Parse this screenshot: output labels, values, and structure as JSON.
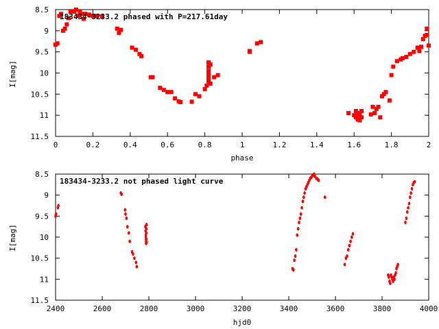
{
  "chart_data": [
    {
      "type": "scatter",
      "title": "183434-3233.2 phased with P=217.61day",
      "xlabel": "phase",
      "ylabel": "I[mag]",
      "xlim": [
        0,
        2
      ],
      "ylim": [
        11.5,
        8.5
      ],
      "y_inverted": true,
      "grid": false,
      "x_ticks": [
        "0",
        "0.2",
        "0.4",
        "0.6",
        "0.8",
        "1",
        "1.2",
        "1.4",
        "1.6",
        "1.8",
        "2"
      ],
      "y_ticks": [
        "8.5",
        "9",
        "9.5",
        "10",
        "10.5",
        "11",
        "11.5"
      ],
      "marker_color": "#ff0000",
      "series": [
        {
          "x": [
            0.0,
            0.01,
            0.02,
            0.03,
            0.04,
            0.05,
            0.06,
            0.07,
            0.08,
            0.09,
            0.1,
            0.11,
            0.12,
            0.13,
            0.14,
            0.15,
            0.16,
            0.18,
            0.2,
            0.22,
            0.25,
            0.33,
            0.34,
            0.35,
            0.41,
            0.43,
            0.45,
            0.46,
            0.51,
            0.52,
            0.56,
            0.58,
            0.6,
            0.62,
            0.64,
            0.66,
            0.67,
            0.73,
            0.75,
            0.77,
            0.8,
            0.81,
            0.82,
            0.82,
            0.82,
            0.82,
            0.82,
            0.82,
            0.82,
            0.82,
            0.83,
            0.83,
            0.85,
            0.87,
            1.04,
            1.04,
            1.08,
            1.1,
            1.57,
            1.6,
            1.61,
            1.61,
            1.62,
            1.62,
            1.62,
            1.63,
            1.63,
            1.63,
            1.64,
            1.64,
            1.69,
            1.7,
            1.71,
            1.72,
            1.73,
            1.74,
            1.75,
            1.76,
            1.77,
            1.79,
            1.8,
            1.81,
            1.83,
            1.85,
            1.86,
            1.88,
            1.9,
            1.92,
            1.94,
            1.95,
            1.96,
            1.97,
            1.98,
            1.99,
            1.99,
            2.0
          ],
          "y": [
            9.33,
            9.3,
            8.65,
            8.6,
            9.0,
            8.95,
            8.85,
            8.7,
            8.55,
            8.55,
            8.55,
            8.5,
            8.65,
            8.55,
            8.6,
            8.72,
            8.6,
            8.62,
            8.65,
            8.65,
            8.66,
            8.95,
            9.05,
            8.98,
            9.4,
            9.45,
            9.55,
            9.6,
            10.1,
            10.1,
            10.35,
            10.4,
            10.45,
            10.45,
            10.6,
            10.67,
            10.69,
            10.68,
            10.5,
            10.55,
            10.38,
            10.3,
            9.75,
            9.85,
            9.95,
            10.0,
            10.05,
            10.1,
            10.15,
            10.2,
            9.8,
            10.25,
            10.1,
            10.05,
            9.48,
            9.5,
            9.3,
            9.27,
            10.95,
            11.0,
            10.9,
            11.05,
            11.1,
            11.0,
            10.95,
            11.12,
            11.08,
            10.98,
            11.05,
            10.9,
            10.98,
            10.8,
            10.95,
            10.85,
            10.8,
            11.05,
            10.55,
            10.5,
            10.45,
            10.65,
            10.05,
            9.85,
            9.72,
            9.68,
            9.65,
            9.62,
            9.55,
            9.5,
            9.4,
            9.48,
            9.38,
            9.2,
            9.12,
            9.1,
            8.95,
            9.35
          ]
        }
      ]
    },
    {
      "type": "scatter",
      "title": "183434-3233.2 not phased light curve",
      "xlabel": "hjd0",
      "ylabel": "I[mag]",
      "xlim": [
        2400,
        4000
      ],
      "ylim": [
        11.5,
        8.5
      ],
      "y_inverted": true,
      "grid": false,
      "x_ticks": [
        "2400",
        "2600",
        "2800",
        "3000",
        "3200",
        "3400",
        "3600",
        "3800",
        "4000"
      ],
      "y_ticks": [
        "8.5",
        "9",
        "9.5",
        "10",
        "10.5",
        "11",
        "11.5"
      ],
      "marker_color": "#ff0000",
      "series": [
        {
          "x": [
            2400,
            2402,
            2410,
            2412,
            2680,
            2683,
            2698,
            2700,
            2704,
            2708,
            2714,
            2718,
            2728,
            2732,
            2738,
            2745,
            2748,
            2785,
            2786,
            2787,
            2787,
            2788,
            2788,
            2788,
            2789,
            2789,
            2789,
            2790,
            2790,
            3416,
            3420,
            3424,
            3428,
            3432,
            3436,
            3440,
            3444,
            3448,
            3452,
            3456,
            3460,
            3464,
            3468,
            3472,
            3476,
            3480,
            3484,
            3488,
            3492,
            3496,
            3500,
            3504,
            3508,
            3512,
            3518,
            3524,
            3528,
            3555,
            3640,
            3645,
            3650,
            3655,
            3660,
            3665,
            3670,
            3675,
            3826,
            3829,
            3832,
            3835,
            3838,
            3841,
            3844,
            3847,
            3850,
            3853,
            3856,
            3859,
            3862,
            3865,
            3868,
            3900,
            3904,
            3908,
            3912,
            3916,
            3920,
            3924,
            3928,
            3932,
            3936,
            3940
          ],
          "y": [
            9.5,
            9.45,
            9.3,
            9.25,
            8.95,
            8.98,
            9.35,
            9.45,
            9.55,
            9.75,
            9.9,
            10.1,
            10.35,
            10.4,
            10.5,
            10.6,
            10.7,
            9.75,
            9.85,
            9.95,
            10.0,
            10.05,
            10.1,
            10.15,
            9.8,
            9.9,
            10.05,
            10.12,
            9.7,
            10.75,
            10.78,
            10.55,
            10.45,
            10.3,
            9.95,
            9.8,
            9.65,
            9.55,
            9.45,
            9.3,
            9.15,
            9.05,
            8.95,
            8.85,
            8.8,
            8.75,
            8.7,
            8.65,
            8.6,
            8.58,
            8.55,
            8.52,
            8.5,
            8.55,
            8.6,
            8.62,
            8.65,
            9.05,
            10.65,
            10.5,
            10.45,
            10.3,
            10.2,
            10.1,
            10.0,
            9.92,
            10.9,
            10.95,
            11.05,
            11.1,
            10.9,
            10.95,
            11.0,
            11.05,
            10.95,
            11.0,
            10.9,
            10.85,
            10.75,
            10.7,
            10.65,
            9.65,
            9.55,
            9.4,
            9.3,
            9.2,
            9.05,
            8.95,
            8.85,
            8.75,
            8.7,
            8.68
          ]
        }
      ]
    }
  ]
}
